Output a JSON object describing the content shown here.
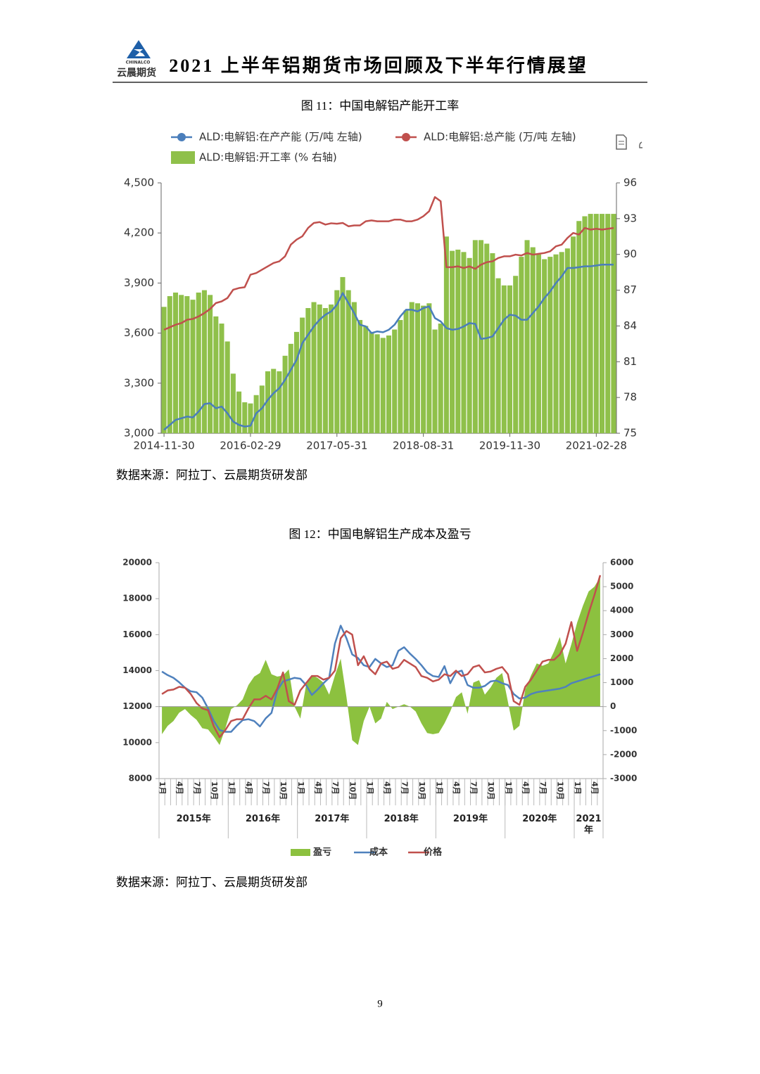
{
  "header": {
    "logo_mark": "CHINALCO",
    "logo_name": "云晨期货",
    "title": "2021 上半年铝期货市场回顾及下半年行情展望"
  },
  "figures": [
    {
      "caption": "图 11：中国电解铝产能开工率",
      "source": "数据来源：阿拉丁、云晨期货研发部"
    },
    {
      "caption": "图 12：中国电解铝生产成本及盈亏",
      "source": "数据来源：阿拉丁、云晨期货研发部"
    }
  ],
  "chart_data": [
    {
      "type": "combo",
      "categories": [
        "2014-11-30",
        null,
        null,
        null,
        null,
        null,
        null,
        null,
        null,
        null,
        null,
        null,
        null,
        null,
        null,
        "2016-02-29",
        null,
        null,
        null,
        null,
        null,
        null,
        null,
        null,
        null,
        null,
        null,
        null,
        null,
        null,
        "2017-05-31",
        null,
        null,
        null,
        null,
        null,
        null,
        null,
        null,
        null,
        null,
        null,
        null,
        null,
        null,
        "2018-08-31",
        null,
        null,
        null,
        null,
        null,
        null,
        null,
        null,
        null,
        null,
        null,
        null,
        null,
        null,
        "2019-11-30",
        null,
        null,
        null,
        null,
        null,
        null,
        null,
        null,
        null,
        null,
        null,
        null,
        null,
        null,
        "2021-02-28",
        null,
        null,
        null
      ],
      "series": [
        {
          "name": "ALD:电解铝:在产产能 (万/吨 左轴)",
          "type": "line",
          "color": "#4a7ebb",
          "values": [
            3020,
            3050,
            3080,
            3090,
            3100,
            3095,
            3130,
            3175,
            3180,
            3150,
            3160,
            3120,
            3070,
            3050,
            3040,
            3045,
            3120,
            3150,
            3200,
            3240,
            3270,
            3320,
            3380,
            3440,
            3540,
            3590,
            3640,
            3680,
            3710,
            3730,
            3770,
            3840,
            3780,
            3720,
            3650,
            3640,
            3600,
            3610,
            3605,
            3620,
            3650,
            3700,
            3740,
            3740,
            3730,
            3750,
            3760,
            3690,
            3670,
            3630,
            3620,
            3625,
            3640,
            3660,
            3655,
            3565,
            3570,
            3580,
            3630,
            3680,
            3710,
            3705,
            3680,
            3680,
            3720,
            3760,
            3810,
            3850,
            3900,
            3940,
            3990,
            3990,
            3995,
            4000,
            4000,
            4005,
            4010,
            4010,
            4010
          ]
        },
        {
          "name": "ALD:电解铝:总产能 (万/吨 左轴)",
          "type": "line",
          "color": "#c0504d",
          "values": [
            3620,
            3635,
            3650,
            3660,
            3680,
            3685,
            3700,
            3720,
            3745,
            3780,
            3790,
            3810,
            3860,
            3870,
            3875,
            3950,
            3960,
            3980,
            4000,
            4020,
            4030,
            4060,
            4130,
            4160,
            4180,
            4230,
            4260,
            4265,
            4250,
            4258,
            4255,
            4260,
            4240,
            4245,
            4245,
            4270,
            4275,
            4270,
            4270,
            4270,
            4280,
            4280,
            4270,
            4270,
            4280,
            4300,
            4330,
            4415,
            4390,
            3995,
            3995,
            4000,
            3990,
            4000,
            3985,
            4010,
            4025,
            4030,
            4050,
            4060,
            4060,
            4070,
            4065,
            4080,
            4070,
            4075,
            4080,
            4090,
            4120,
            4130,
            4170,
            4200,
            4190,
            4230,
            4220,
            4225,
            4220,
            4225,
            4230
          ]
        },
        {
          "name": "ALD:电解铝:开工率 (% 右轴)",
          "type": "bar",
          "axis": "y2",
          "color": "#8fc04a",
          "values": [
            85.6,
            86.5,
            86.8,
            86.6,
            86.5,
            86.2,
            86.8,
            87,
            86.6,
            84.8,
            84.2,
            82.7,
            80,
            78.5,
            77.6,
            77.5,
            78.2,
            79,
            80.2,
            80.4,
            80.2,
            81.5,
            82.5,
            83.5,
            84.7,
            85.5,
            86,
            85.8,
            85.5,
            85.8,
            87,
            88.1,
            87,
            86,
            84.5,
            84,
            83.5,
            83.3,
            83,
            83.2,
            83.7,
            84.5,
            85.3,
            86,
            85.9,
            85.7,
            85.9,
            83.7,
            84.2,
            91.5,
            90.3,
            90.4,
            90.2,
            89.7,
            91.2,
            91.2,
            90.9,
            90.1,
            88,
            87.4,
            87.4,
            88.2,
            89.8,
            91.2,
            90.6,
            90,
            89.6,
            89.8,
            90,
            90.2,
            90.5,
            91.5,
            92.8,
            93.2,
            93.4,
            93.4,
            93.4,
            93.4,
            93.4
          ]
        }
      ],
      "ylim": [
        3000,
        4500
      ],
      "yticks": [
        {
          "value": 3000,
          "label": "3,000"
        },
        {
          "value": 3300,
          "label": "3,300"
        },
        {
          "value": 3600,
          "label": "3,600"
        },
        {
          "value": 3900,
          "label": "3,900"
        },
        {
          "value": 4200,
          "label": "4,200"
        },
        {
          "value": 4500,
          "label": "4,500"
        }
      ],
      "y2lim": [
        75,
        96
      ],
      "y2ticks": [
        75,
        78,
        81,
        84,
        87,
        90,
        93,
        96
      ],
      "grid": false,
      "legend": "top"
    },
    {
      "type": "combo",
      "categories": [
        "1月",
        null,
        null,
        "4月",
        null,
        null,
        "7月",
        null,
        null,
        "10月",
        null,
        null,
        "1月",
        null,
        null,
        "4月",
        null,
        null,
        "7月",
        null,
        null,
        "10月",
        null,
        null,
        "1月",
        null,
        null,
        "4月",
        null,
        null,
        "7月",
        null,
        null,
        "10月",
        null,
        null,
        "1月",
        null,
        null,
        "4月",
        null,
        null,
        "7月",
        null,
        null,
        "10月",
        null,
        null,
        "1月",
        null,
        null,
        "4月",
        null,
        null,
        "7月",
        null,
        null,
        "10月",
        null,
        null,
        "1月",
        null,
        null,
        "4月",
        null,
        null,
        "7月",
        null,
        null,
        "10月",
        null,
        null,
        "1月",
        null,
        null,
        "4月",
        null
      ],
      "x_groups": [
        "2015年",
        "2016年",
        "2017年",
        "2018年",
        "2019年",
        "2020年",
        "2021年"
      ],
      "series": [
        {
          "name": "盈亏",
          "type": "area",
          "axis": "y2",
          "color": "#8cc13f",
          "values": [
            -1150,
            -800,
            -600,
            -250,
            -100,
            -350,
            -550,
            -900,
            -950,
            -1250,
            -1600,
            -900,
            -100,
            50,
            300,
            900,
            1250,
            1400,
            1950,
            1350,
            1250,
            1300,
            1550,
            0,
            -500,
            900,
            1300,
            1200,
            1000,
            500,
            1300,
            2000,
            400,
            -1400,
            -1600,
            -600,
            0,
            -700,
            -500,
            200,
            -100,
            0,
            100,
            0,
            -200,
            -700,
            -1100,
            -1150,
            -1100,
            -700,
            -200,
            400,
            600,
            -300,
            1000,
            1100,
            500,
            800,
            1200,
            1400,
            200,
            -1000,
            -800,
            700,
            1300,
            1800,
            1700,
            1800,
            2300,
            2900,
            1800,
            2600,
            3500,
            4200,
            4800,
            5000,
            5400
          ]
        },
        {
          "name": "成本",
          "type": "line",
          "color": "#4f81bd",
          "values": [
            13950,
            13750,
            13600,
            13350,
            13050,
            12850,
            12800,
            12500,
            11900,
            11200,
            10700,
            10600,
            10600,
            10950,
            11250,
            11300,
            11200,
            10900,
            11350,
            11650,
            12900,
            13400,
            13500,
            13600,
            13550,
            13200,
            12650,
            12950,
            13300,
            13600,
            15500,
            16500,
            15800,
            14900,
            14700,
            14300,
            14200,
            14650,
            14400,
            14200,
            14300,
            15100,
            15300,
            14950,
            14650,
            14300,
            13900,
            13700,
            13650,
            14250,
            13300,
            13900,
            14000,
            13200,
            13050,
            13050,
            13150,
            13400,
            13450,
            13300,
            13200,
            12700,
            12450,
            12500,
            12700,
            12800,
            12850,
            12900,
            12950,
            13000,
            13100,
            13300,
            13400,
            13500,
            13600,
            13700,
            13800
          ]
        },
        {
          "name": "价格",
          "type": "line",
          "color": "#c0504d",
          "values": [
            12700,
            12900,
            12950,
            13100,
            13050,
            12700,
            12200,
            11900,
            11800,
            10900,
            10300,
            10700,
            11200,
            11300,
            11300,
            11900,
            12400,
            12400,
            12600,
            12400,
            13000,
            13900,
            12300,
            12100,
            12900,
            13300,
            13700,
            13700,
            13500,
            13600,
            14000,
            15800,
            16200,
            16000,
            14300,
            14800,
            14100,
            13800,
            14400,
            14500,
            14100,
            14200,
            14600,
            14400,
            14200,
            13700,
            13600,
            13400,
            13500,
            13800,
            13700,
            14000,
            13700,
            13800,
            14200,
            14300,
            13900,
            13950,
            14100,
            14200,
            13800,
            12300,
            12100,
            13100,
            13500,
            14000,
            14500,
            14600,
            14600,
            14900,
            15500,
            16700,
            15100,
            16100,
            17200,
            18200,
            19300
          ]
        }
      ],
      "ylim": [
        8000,
        20000
      ],
      "yticks": [
        8000,
        10000,
        12000,
        14000,
        16000,
        18000,
        20000
      ],
      "y2lim": [
        -3000,
        6000
      ],
      "y2ticks": [
        -3000,
        -2000,
        -1000,
        0,
        1000,
        2000,
        3000,
        4000,
        5000,
        6000
      ],
      "grid": false,
      "legend": "bottom"
    }
  ],
  "page_number": 9
}
